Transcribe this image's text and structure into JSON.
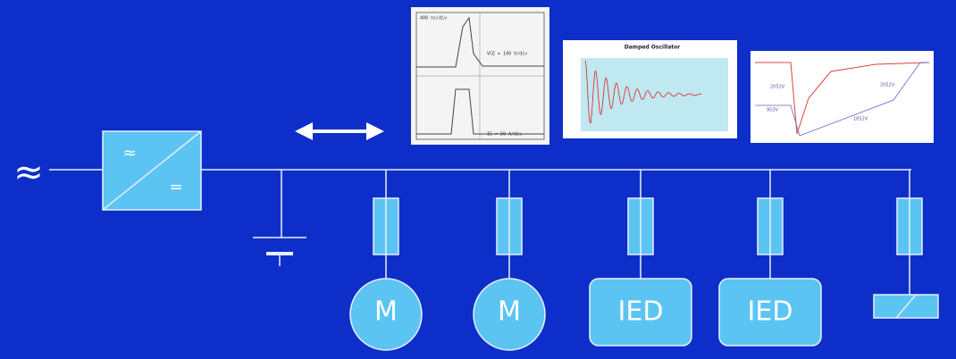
{
  "ac_symbol": "≈",
  "converter": {
    "ac": "≈",
    "dc": "="
  },
  "loads": [
    {
      "label": "M"
    },
    {
      "label": "M"
    },
    {
      "label": "IED"
    },
    {
      "label": "IED"
    }
  ],
  "insets": {
    "switching": {
      "timebase": "400 ns/div",
      "voltage": "VCE = 100 V/div",
      "current": "IC = 50 A/div"
    },
    "oscillator": {
      "title": "Damped Oscillator"
    },
    "transient": {
      "labels": [
        "2052V",
        "2052V",
        "953V",
        "1852V"
      ]
    }
  }
}
